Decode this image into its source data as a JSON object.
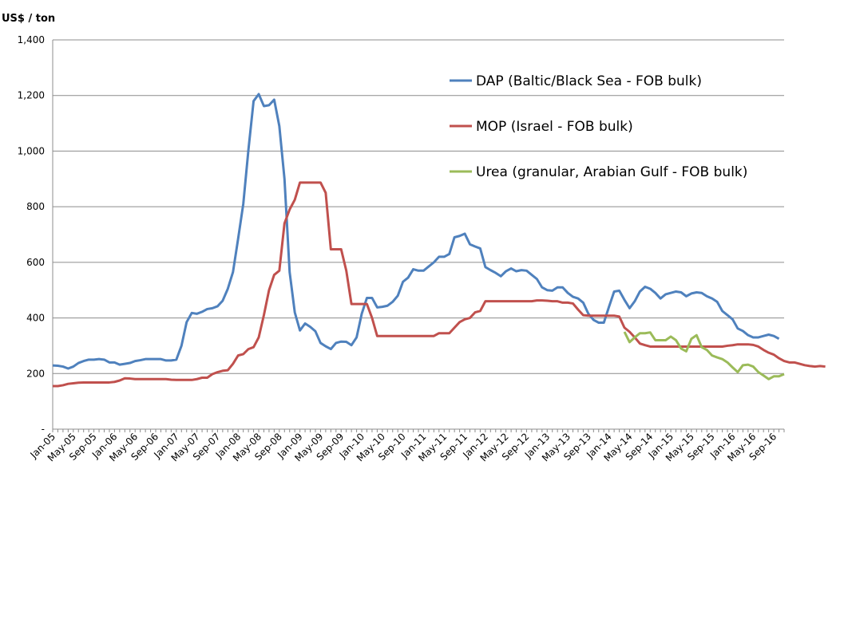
{
  "chart_data": {
    "type": "line",
    "ylabel": "US$ / ton",
    "ylim": [
      0,
      1400
    ],
    "yticks": [
      {
        "value": 0,
        "label": "-"
      },
      {
        "value": 200,
        "label": "200"
      },
      {
        "value": 400,
        "label": "400"
      },
      {
        "value": 600,
        "label": "600"
      },
      {
        "value": 800,
        "label": "800"
      },
      {
        "value": 1000,
        "label": "1,000"
      },
      {
        "value": 1200,
        "label": "1,200"
      },
      {
        "value": 1400,
        "label": "1,400"
      }
    ],
    "x_start": "Jan-05",
    "x_end": "Nov-16",
    "xtick_labels": [
      "Jan-05",
      "May-05",
      "Sep-05",
      "Jan-06",
      "May-06",
      "Sep-06",
      "Jan-07",
      "May-07",
      "Sep-07",
      "Jan-08",
      "May-08",
      "Sep-08",
      "Jan-09",
      "May-09",
      "Sep-09",
      "Jan-10",
      "May-10",
      "Sep-10",
      "Jan-11",
      "May-11",
      "Sep-11",
      "Jan-12",
      "May-12",
      "Sep-12",
      "Jan-13",
      "May-13",
      "Sep-13",
      "Jan-14",
      "May-14",
      "Sep-14",
      "Jan-15",
      "May-15",
      "Sep-15",
      "Jan-16",
      "May-16",
      "Sep-16"
    ],
    "grid": true,
    "legend_position": "top-right",
    "series": [
      {
        "name": "DAP (Baltic/Black Sea - FOB bulk)",
        "color": "#4f81bd",
        "start": "Jan-05",
        "values": [
          229,
          228,
          225,
          218,
          225,
          238,
          245,
          250,
          250,
          252,
          250,
          240,
          240,
          232,
          235,
          238,
          245,
          248,
          252,
          252,
          252,
          252,
          247,
          247,
          250,
          300,
          385,
          418,
          415,
          422,
          432,
          435,
          442,
          462,
          505,
          565,
          685,
          810,
          1005,
          1180,
          1205,
          1162,
          1165,
          1185,
          1090,
          900,
          565,
          420,
          355,
          380,
          368,
          352,
          310,
          298,
          288,
          310,
          315,
          314,
          302,
          330,
          415,
          472,
          472,
          438,
          440,
          444,
          458,
          480,
          530,
          545,
          575,
          570,
          570,
          585,
          600,
          620,
          620,
          630,
          690,
          695,
          703,
          665,
          657,
          650,
          583,
          572,
          562,
          550,
          568,
          578,
          568,
          572,
          570,
          555,
          540,
          510,
          500,
          498,
          510,
          510,
          490,
          476,
          470,
          455,
          415,
          393,
          383,
          383,
          440,
          495,
          498,
          465,
          435,
          460,
          495,
          512,
          505,
          490,
          470,
          485,
          490,
          495,
          492,
          478,
          488,
          492,
          490,
          478,
          470,
          458,
          425,
          410,
          395,
          362,
          353,
          338,
          330,
          330,
          335,
          340,
          335,
          325
        ]
      },
      {
        "name": "MOP (Israel - FOB bulk)",
        "color": "#c0504d",
        "start": "Jan-05",
        "values": [
          155,
          155,
          158,
          163,
          165,
          167,
          168,
          168,
          168,
          168,
          168,
          168,
          170,
          175,
          183,
          182,
          180,
          180,
          180,
          180,
          180,
          180,
          180,
          178,
          177,
          177,
          177,
          177,
          180,
          185,
          185,
          198,
          205,
          210,
          212,
          235,
          265,
          270,
          288,
          295,
          330,
          410,
          500,
          555,
          570,
          740,
          790,
          825,
          887,
          887,
          887,
          887,
          887,
          850,
          647,
          647,
          647,
          570,
          450,
          450,
          450,
          450,
          400,
          335,
          335,
          335,
          335,
          335,
          335,
          335,
          335,
          335,
          335,
          335,
          335,
          345,
          345,
          345,
          365,
          385,
          395,
          400,
          420,
          425,
          460,
          460,
          460,
          460,
          460,
          460,
          460,
          460,
          460,
          460,
          463,
          463,
          462,
          460,
          460,
          455,
          455,
          452,
          430,
          410,
          408,
          408,
          408,
          408,
          408,
          408,
          405,
          365,
          350,
          330,
          308,
          302,
          297,
          297,
          297,
          297,
          297,
          297,
          297,
          297,
          297,
          297,
          297,
          297,
          297,
          297,
          297,
          300,
          302,
          305,
          305,
          305,
          303,
          297,
          285,
          275,
          268,
          255,
          245,
          240,
          240,
          235,
          230,
          227,
          225,
          227,
          225
        ]
      },
      {
        "name": "Urea (granular, Arabian Gulf - FOB bulk)",
        "color": "#9bbb59",
        "start": "Apr-14",
        "values": [
          350,
          313,
          330,
          345,
          345,
          348,
          320,
          320,
          320,
          333,
          320,
          290,
          280,
          325,
          338,
          295,
          285,
          265,
          258,
          252,
          240,
          222,
          205,
          230,
          232,
          225,
          205,
          193,
          180,
          190,
          190,
          198
        ]
      }
    ]
  }
}
